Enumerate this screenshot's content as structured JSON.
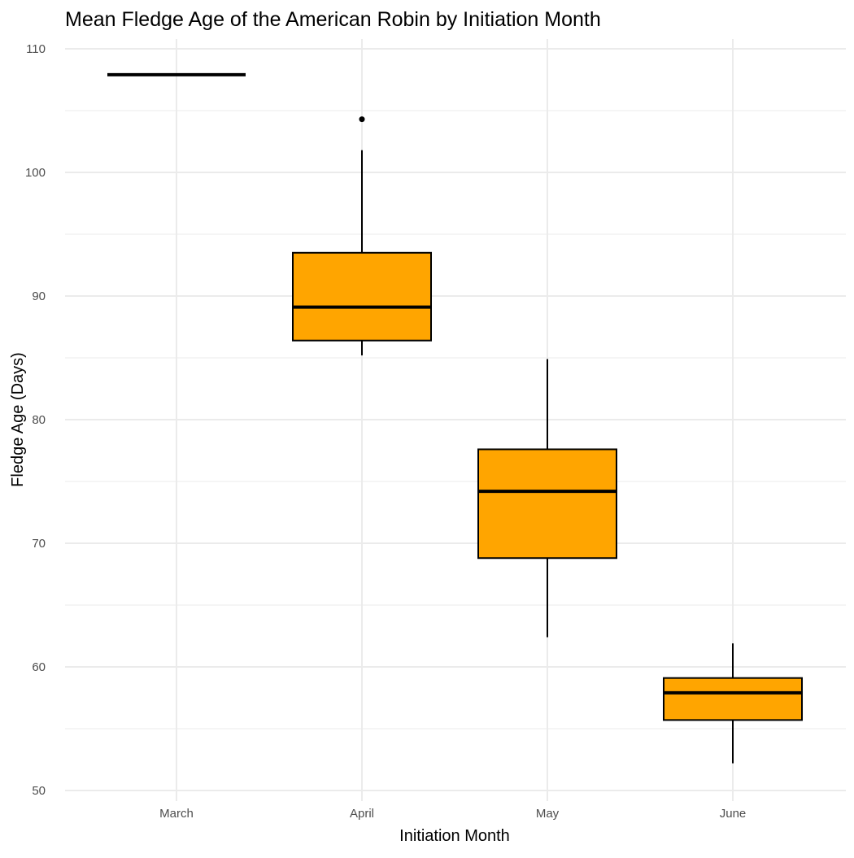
{
  "chart_data": {
    "type": "boxplot",
    "title": "Mean Fledge Age of the American Robin by Initiation Month",
    "xlabel": "Initiation Month",
    "ylabel": "Fledge Age (Days)",
    "ylim": [
      50,
      110
    ],
    "yticks": [
      50,
      60,
      70,
      80,
      90,
      100,
      110
    ],
    "grid": true,
    "categories": [
      "March",
      "April",
      "May",
      "June"
    ],
    "boxes": [
      {
        "category": "March",
        "lower_whisker": 107.9,
        "q1": 107.9,
        "median": 107.9,
        "q3": 107.9,
        "upper_whisker": 107.9,
        "outliers": []
      },
      {
        "category": "April",
        "lower_whisker": 85.2,
        "q1": 86.4,
        "median": 89.1,
        "q3": 93.5,
        "upper_whisker": 101.8,
        "outliers": [
          104.3
        ]
      },
      {
        "category": "May",
        "lower_whisker": 62.4,
        "q1": 68.8,
        "median": 74.2,
        "q3": 77.6,
        "upper_whisker": 84.9,
        "outliers": []
      },
      {
        "category": "June",
        "lower_whisker": 52.2,
        "q1": 55.7,
        "median": 57.9,
        "q3": 59.1,
        "upper_whisker": 61.9,
        "outliers": []
      }
    ],
    "colors": {
      "fill": "#FFA500",
      "outline": "#000000",
      "grid": "#EBEBEB"
    }
  }
}
